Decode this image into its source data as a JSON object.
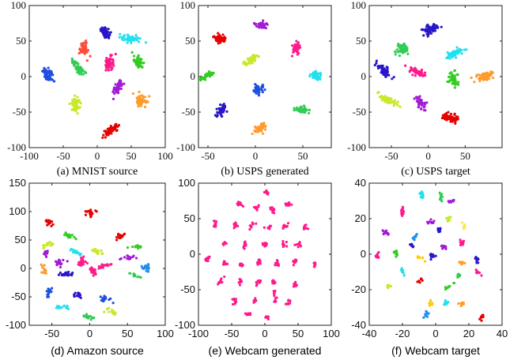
{
  "chart_data": [
    {
      "type": "scatter",
      "title": "(a) MNIST source",
      "font": "serif",
      "xlim": [
        -100,
        100
      ],
      "ylim": [
        -100,
        100
      ],
      "xticks": [
        -100,
        -50,
        0,
        50,
        100
      ],
      "yticks": [
        -100,
        -50,
        0,
        50,
        100
      ],
      "spread": 4,
      "clusters": [
        {
          "x": -73,
          "y": 3,
          "n": 60,
          "color": "#1f4fe0"
        },
        {
          "x": -28,
          "y": 13,
          "n": 55,
          "color": "#33cc55"
        },
        {
          "x": 12,
          "y": 62,
          "n": 55,
          "color": "#2a16c8"
        },
        {
          "x": 50,
          "y": 53,
          "n": 55,
          "color": "#22e0ee"
        },
        {
          "x": -20,
          "y": 39,
          "n": 45,
          "color": "#ff4d3a"
        },
        {
          "x": 18,
          "y": 19,
          "n": 55,
          "color": "#ff1a8c"
        },
        {
          "x": 60,
          "y": 20,
          "n": 55,
          "color": "#33cc22"
        },
        {
          "x": 31,
          "y": -16,
          "n": 55,
          "color": "#a21bd6"
        },
        {
          "x": -33,
          "y": -39,
          "n": 55,
          "color": "#c8e82a"
        },
        {
          "x": 64,
          "y": -34,
          "n": 60,
          "color": "#ff9b2a"
        },
        {
          "x": 20,
          "y": -76,
          "n": 60,
          "color": "#e60000"
        }
      ]
    },
    {
      "type": "scatter",
      "title": "(b) USPS generated",
      "font": "serif",
      "xlim": [
        -60,
        80
      ],
      "ylim": [
        -100,
        100
      ],
      "xticks": [
        -50,
        0,
        50
      ],
      "yticks": [
        -100,
        -50,
        0,
        50,
        100
      ],
      "spread": 3,
      "clusters": [
        {
          "x": 6,
          "y": 72,
          "n": 45,
          "color": "#a21bd6"
        },
        {
          "x": -38,
          "y": 53,
          "n": 50,
          "color": "#e60000"
        },
        {
          "x": 43,
          "y": 40,
          "n": 45,
          "color": "#ff1a8c"
        },
        {
          "x": -4,
          "y": 23,
          "n": 45,
          "color": "#c8e82a"
        },
        {
          "x": -53,
          "y": 0,
          "n": 45,
          "color": "#33cc22"
        },
        {
          "x": 64,
          "y": 0,
          "n": 45,
          "color": "#22e0ee"
        },
        {
          "x": 3,
          "y": -18,
          "n": 45,
          "color": "#1f4fe0"
        },
        {
          "x": -36,
          "y": -48,
          "n": 45,
          "color": "#2a16c8"
        },
        {
          "x": 49,
          "y": -47,
          "n": 45,
          "color": "#33cc55"
        },
        {
          "x": 4,
          "y": -72,
          "n": 50,
          "color": "#ff9b2a"
        }
      ]
    },
    {
      "type": "scatter",
      "title": "(c) USPS target",
      "font": "serif",
      "xlim": [
        -80,
        100
      ],
      "ylim": [
        -100,
        100
      ],
      "xticks": [
        -50,
        0,
        50
      ],
      "yticks": [
        -100,
        -50,
        0,
        50,
        100
      ],
      "spread": 4,
      "clusters": [
        {
          "x": 3,
          "y": 67,
          "n": 55,
          "color": "#2a16c8"
        },
        {
          "x": -35,
          "y": 38,
          "n": 50,
          "color": "#33cc55"
        },
        {
          "x": 35,
          "y": 32,
          "n": 50,
          "color": "#22e0ee"
        },
        {
          "x": -60,
          "y": 8,
          "n": 50,
          "color": "#2a16c8"
        },
        {
          "x": -13,
          "y": 6,
          "n": 50,
          "color": "#ff1a8c"
        },
        {
          "x": 34,
          "y": -4,
          "n": 50,
          "color": "#33cc22"
        },
        {
          "x": 76,
          "y": 0,
          "n": 55,
          "color": "#ff9b2a"
        },
        {
          "x": -11,
          "y": -36,
          "n": 45,
          "color": "#a21bd6"
        },
        {
          "x": -52,
          "y": -34,
          "n": 50,
          "color": "#c8e82a"
        },
        {
          "x": 32,
          "y": -58,
          "n": 55,
          "color": "#e60000"
        }
      ]
    },
    {
      "type": "scatter",
      "title": "(d) Amazon source",
      "font": "sans",
      "xlim": [
        -80,
        100
      ],
      "ylim": [
        -100,
        150
      ],
      "xticks": [
        -50,
        0,
        50,
        100
      ],
      "yticks": [
        -100,
        -50,
        0,
        50,
        100,
        150
      ],
      "spread": 3,
      "clusters": [
        {
          "x": -55,
          "y": 82,
          "n": 20,
          "color": "#e60000"
        },
        {
          "x": 2,
          "y": 98,
          "n": 20,
          "color": "#e60000"
        },
        {
          "x": -55,
          "y": 41,
          "n": 15,
          "color": "#c8e82a"
        },
        {
          "x": -28,
          "y": 58,
          "n": 15,
          "color": "#33cc22"
        },
        {
          "x": 40,
          "y": 56,
          "n": 15,
          "color": "#e60000"
        },
        {
          "x": 62,
          "y": 40,
          "n": 15,
          "color": "#33cc22"
        },
        {
          "x": -58,
          "y": 25,
          "n": 15,
          "color": "#a21bd6"
        },
        {
          "x": -20,
          "y": 30,
          "n": 20,
          "color": "#22e0ee"
        },
        {
          "x": 10,
          "y": 30,
          "n": 18,
          "color": "#c8e82a"
        },
        {
          "x": 52,
          "y": 20,
          "n": 15,
          "color": "#a21bd6"
        },
        {
          "x": -40,
          "y": 10,
          "n": 25,
          "color": "#a21bd6"
        },
        {
          "x": -10,
          "y": 12,
          "n": 25,
          "color": "#ff1a8c"
        },
        {
          "x": 20,
          "y": 5,
          "n": 25,
          "color": "#ff1a8c"
        },
        {
          "x": 75,
          "y": 3,
          "n": 18,
          "color": "#1f8fee"
        },
        {
          "x": -60,
          "y": -3,
          "n": 15,
          "color": "#ff9b2a"
        },
        {
          "x": -30,
          "y": -10,
          "n": 20,
          "color": "#2a16c8"
        },
        {
          "x": 5,
          "y": -5,
          "n": 25,
          "color": "#ff1a8c"
        },
        {
          "x": 60,
          "y": -12,
          "n": 15,
          "color": "#33cc55"
        },
        {
          "x": -55,
          "y": -42,
          "n": 15,
          "color": "#1f4fe0"
        },
        {
          "x": -15,
          "y": -48,
          "n": 15,
          "color": "#2a16c8"
        },
        {
          "x": 20,
          "y": -55,
          "n": 15,
          "color": "#1f4fe0"
        },
        {
          "x": -38,
          "y": -68,
          "n": 15,
          "color": "#22e0ee"
        },
        {
          "x": 28,
          "y": -75,
          "n": 15,
          "color": "#c8e82a"
        },
        {
          "x": -2,
          "y": -85,
          "n": 15,
          "color": "#33cc55"
        }
      ]
    },
    {
      "type": "scatter",
      "title": "(e) Webcam generated",
      "font": "sans",
      "xlim": [
        -100,
        100
      ],
      "ylim": [
        -100,
        100
      ],
      "xticks": [
        -100,
        -50,
        0,
        50,
        100
      ],
      "yticks": [
        -100,
        -50,
        0,
        50,
        100
      ],
      "spread": 2,
      "clusters": [
        {
          "x": 2,
          "y": 88,
          "n": 8,
          "color": "#ff1a8c"
        },
        {
          "x": -38,
          "y": 70,
          "n": 10,
          "color": "#ff1a8c"
        },
        {
          "x": 35,
          "y": 70,
          "n": 10,
          "color": "#ff1a8c"
        },
        {
          "x": -12,
          "y": 65,
          "n": 10,
          "color": "#ff1a8c"
        },
        {
          "x": 12,
          "y": 62,
          "n": 10,
          "color": "#ff1a8c"
        },
        {
          "x": -75,
          "y": 42,
          "n": 10,
          "color": "#ff1a8c"
        },
        {
          "x": -45,
          "y": 40,
          "n": 10,
          "color": "#ff1a8c"
        },
        {
          "x": -20,
          "y": 40,
          "n": 10,
          "color": "#ff1a8c"
        },
        {
          "x": 5,
          "y": 38,
          "n": 10,
          "color": "#ff1a8c"
        },
        {
          "x": 30,
          "y": 40,
          "n": 10,
          "color": "#ff1a8c"
        },
        {
          "x": 62,
          "y": 38,
          "n": 10,
          "color": "#ff1a8c"
        },
        {
          "x": -60,
          "y": 15,
          "n": 10,
          "color": "#ff1a8c"
        },
        {
          "x": -30,
          "y": 14,
          "n": 10,
          "color": "#ff1a8c"
        },
        {
          "x": 0,
          "y": 14,
          "n": 10,
          "color": "#ff1a8c"
        },
        {
          "x": 28,
          "y": 12,
          "n": 10,
          "color": "#ff1a8c"
        },
        {
          "x": 52,
          "y": 14,
          "n": 10,
          "color": "#ff1a8c"
        },
        {
          "x": -88,
          "y": -8,
          "n": 10,
          "color": "#ff1a8c"
        },
        {
          "x": -60,
          "y": -12,
          "n": 10,
          "color": "#ff1a8c"
        },
        {
          "x": -35,
          "y": -15,
          "n": 10,
          "color": "#ff1a8c"
        },
        {
          "x": -8,
          "y": -10,
          "n": 10,
          "color": "#ff1a8c"
        },
        {
          "x": 18,
          "y": -12,
          "n": 10,
          "color": "#ff1a8c"
        },
        {
          "x": 45,
          "y": -10,
          "n": 10,
          "color": "#ff1a8c"
        },
        {
          "x": 75,
          "y": -15,
          "n": 10,
          "color": "#ff1a8c"
        },
        {
          "x": -68,
          "y": -40,
          "n": 10,
          "color": "#ff1a8c"
        },
        {
          "x": -38,
          "y": -40,
          "n": 10,
          "color": "#ff1a8c"
        },
        {
          "x": -10,
          "y": -40,
          "n": 10,
          "color": "#ff1a8c"
        },
        {
          "x": 15,
          "y": -40,
          "n": 10,
          "color": "#ff1a8c"
        },
        {
          "x": 45,
          "y": -42,
          "n": 10,
          "color": "#ff1a8c"
        },
        {
          "x": -45,
          "y": -65,
          "n": 10,
          "color": "#ff1a8c"
        },
        {
          "x": -15,
          "y": -65,
          "n": 10,
          "color": "#ff1a8c"
        },
        {
          "x": 15,
          "y": -60,
          "n": 10,
          "color": "#ff1a8c"
        },
        {
          "x": 35,
          "y": -68,
          "n": 10,
          "color": "#ff1a8c"
        },
        {
          "x": -25,
          "y": -85,
          "n": 10,
          "color": "#ff1a8c"
        },
        {
          "x": 2,
          "y": -88,
          "n": 10,
          "color": "#ff1a8c"
        }
      ]
    },
    {
      "type": "scatter",
      "title": "(f) Webcam target",
      "font": "sans",
      "xlim": [
        -40,
        40
      ],
      "ylim": [
        -40,
        40
      ],
      "xticks": [
        -40,
        -20,
        0,
        20,
        40
      ],
      "yticks": [
        -40,
        -20,
        0,
        20,
        40
      ],
      "spread": 0.8,
      "clusters": [
        {
          "x": -8,
          "y": 33,
          "n": 14,
          "color": "#22e0ee"
        },
        {
          "x": 3,
          "y": 32,
          "n": 10,
          "color": "#33cc55"
        },
        {
          "x": 10,
          "y": 30,
          "n": 8,
          "color": "#a21bd6"
        },
        {
          "x": -20,
          "y": 24,
          "n": 12,
          "color": "#ff1a8c"
        },
        {
          "x": -3,
          "y": 18,
          "n": 12,
          "color": "#a21bd6"
        },
        {
          "x": 8,
          "y": 20,
          "n": 10,
          "color": "#c8e82a"
        },
        {
          "x": 17,
          "y": 16,
          "n": 10,
          "color": "#ffe84d"
        },
        {
          "x": -30,
          "y": 12,
          "n": 10,
          "color": "#a21bd6"
        },
        {
          "x": 2,
          "y": 14,
          "n": 10,
          "color": "#2a16c8"
        },
        {
          "x": -12,
          "y": 10,
          "n": 10,
          "color": "#1f8fee"
        },
        {
          "x": 16,
          "y": 7,
          "n": 10,
          "color": "#ff1a8c"
        },
        {
          "x": -14,
          "y": 5,
          "n": 10,
          "color": "#2a16c8"
        },
        {
          "x": 5,
          "y": 4,
          "n": 10,
          "color": "#a21bd6"
        },
        {
          "x": -24,
          "y": 1,
          "n": 10,
          "color": "#33cc22"
        },
        {
          "x": -34,
          "y": -1,
          "n": 8,
          "color": "#ff1a8c"
        },
        {
          "x": -2,
          "y": -1,
          "n": 12,
          "color": "#2a16c8"
        },
        {
          "x": -10,
          "y": -2,
          "n": 8,
          "color": "#ffcc00"
        },
        {
          "x": 25,
          "y": -3,
          "n": 10,
          "color": "#2a16c8"
        },
        {
          "x": 15,
          "y": -5,
          "n": 8,
          "color": "#ff9b2a"
        },
        {
          "x": -20,
          "y": -10,
          "n": 8,
          "color": "#22e0ee"
        },
        {
          "x": -10,
          "y": -15,
          "n": 8,
          "color": "#e60000"
        },
        {
          "x": 14,
          "y": -12,
          "n": 10,
          "color": "#33cc55"
        },
        {
          "x": 25,
          "y": -10,
          "n": 8,
          "color": "#ff1a8c"
        },
        {
          "x": -28,
          "y": -18,
          "n": 10,
          "color": "#c8e82a"
        },
        {
          "x": 8,
          "y": -18,
          "n": 10,
          "color": "#33cc22"
        },
        {
          "x": -3,
          "y": -28,
          "n": 8,
          "color": "#ffcc00"
        },
        {
          "x": 6,
          "y": -27,
          "n": 10,
          "color": "#22e0ee"
        },
        {
          "x": 16,
          "y": -28,
          "n": 10,
          "color": "#ff9b2a"
        },
        {
          "x": -6,
          "y": -34,
          "n": 8,
          "color": "#1f8fee"
        },
        {
          "x": 28,
          "y": -35,
          "n": 10,
          "color": "#e60000"
        }
      ]
    }
  ]
}
